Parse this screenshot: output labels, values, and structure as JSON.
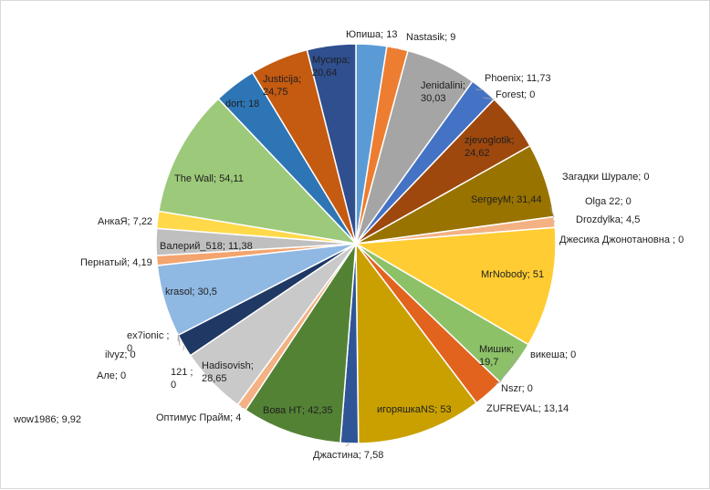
{
  "chart_data": {
    "type": "pie",
    "title": "",
    "series": [
      {
        "name": "Юпиша",
        "value": 13,
        "label": "Юпиша; 13",
        "color": "#5b9bd5"
      },
      {
        "name": "Nastasik",
        "value": 9,
        "label": "Nastasik; 9",
        "color": "#ed7d31"
      },
      {
        "name": "Jenidalini",
        "value": 30.03,
        "label": "Jenidalini; 30,03",
        "color": "#a5a5a5"
      },
      {
        "name": "Phoenix",
        "value": 11.73,
        "label": "Phoenix; 11,73",
        "color": "#4472c4"
      },
      {
        "name": "Forest",
        "value": 0,
        "label": "Forest; 0",
        "color": "#70ad47"
      },
      {
        "name": "zjevoglotik",
        "value": 24.62,
        "label": "zjevoglotik; 24,62",
        "color": "#9e480e"
      },
      {
        "name": "SergeyM",
        "value": 31.44,
        "label": "SergeyM; 31,44",
        "color": "#997300"
      },
      {
        "name": "Загадки Шурале",
        "value": 0,
        "label": "Загадки Шурале; 0",
        "color": "#43682b"
      },
      {
        "name": "Olga 22",
        "value": 0,
        "label": "Olga 22; 0",
        "color": "#636363"
      },
      {
        "name": "Drozdylka",
        "value": 4.5,
        "label": "Drozdylka; 4,5",
        "color": "#f4b183"
      },
      {
        "name": "Джесика Джонотановна",
        "value": 0,
        "label": "Джесика Джонотановна ; 0",
        "color": "#264478"
      },
      {
        "name": "MrNobody",
        "value": 51,
        "label": "MrNobody; 51",
        "color": "#ffcd33"
      },
      {
        "name": "Мишик",
        "value": 19.7,
        "label": "Мишик; 19,7",
        "color": "#8cc168"
      },
      {
        "name": "викеша",
        "value": 0,
        "label": "викеша; 0",
        "color": "#2e75b6"
      },
      {
        "name": "Nszr",
        "value": 0,
        "label": "Nszr; 0",
        "color": "#843c0c"
      },
      {
        "name": "ZUFREVAL",
        "value": 13.14,
        "label": "ZUFREVAL; 13,14",
        "color": "#e2631e"
      },
      {
        "name": "игоряшкаNS",
        "value": 53,
        "label": "игоряшкаNS; 53",
        "color": "#c9a000"
      },
      {
        "name": "Джастина",
        "value": 7.58,
        "label": "Джастина; 7,58",
        "color": "#2f5597"
      },
      {
        "name": "Вова НТ",
        "value": 42.35,
        "label": "Вова НТ; 42,35",
        "color": "#548235"
      },
      {
        "name": "Оптимус Прайм",
        "value": 4,
        "label": "Оптимус Прайм; 4",
        "color": "#f4b183"
      },
      {
        "name": "Hadisovish",
        "value": 28.65,
        "label": "Hadisovish; 28,65",
        "color": "#c9c9c9"
      },
      {
        "name": "121",
        "value": 0,
        "label": "121 ; 0",
        "color": "#5b9bd5"
      },
      {
        "name": "wow1986",
        "value": 9.92,
        "label": "wow1986; 9,92",
        "color": "#1f3864"
      },
      {
        "name": "Але",
        "value": 0,
        "label": "Але; 0",
        "color": "#70ad47"
      },
      {
        "name": "ilvyz",
        "value": 0,
        "label": "ilvyz; 0",
        "color": "#a5a5a5"
      },
      {
        "name": "ex7ionic",
        "value": 0,
        "label": "ex7ionic ; 0",
        "color": "#ffc000"
      },
      {
        "name": "krasol",
        "value": 30.5,
        "label": "krasol; 30,5",
        "color": "#8fb8e3"
      },
      {
        "name": "Пернатый",
        "value": 4.19,
        "label": "Пернатый; 4,19",
        "color": "#f4a46e"
      },
      {
        "name": "Валерий_518",
        "value": 11.38,
        "label": "Валерий_518; 11,38",
        "color": "#bfbfbf"
      },
      {
        "name": "АнкаЯ",
        "value": 7.22,
        "label": "АнкаЯ; 7,22",
        "color": "#ffd94a"
      },
      {
        "name": "The Wall",
        "value": 54.11,
        "label": "The Wall; 54,11",
        "color": "#9dc97a"
      },
      {
        "name": "dort",
        "value": 18,
        "label": "dort; 18",
        "color": "#2e75b6"
      },
      {
        "name": "Justicija",
        "value": 24.75,
        "label": "Justicija; 24,75",
        "color": "#c55a11"
      },
      {
        "name": "Мусира",
        "value": 20.64,
        "label": "Мусира; 20,64",
        "color": "#2f4f8f"
      }
    ]
  }
}
